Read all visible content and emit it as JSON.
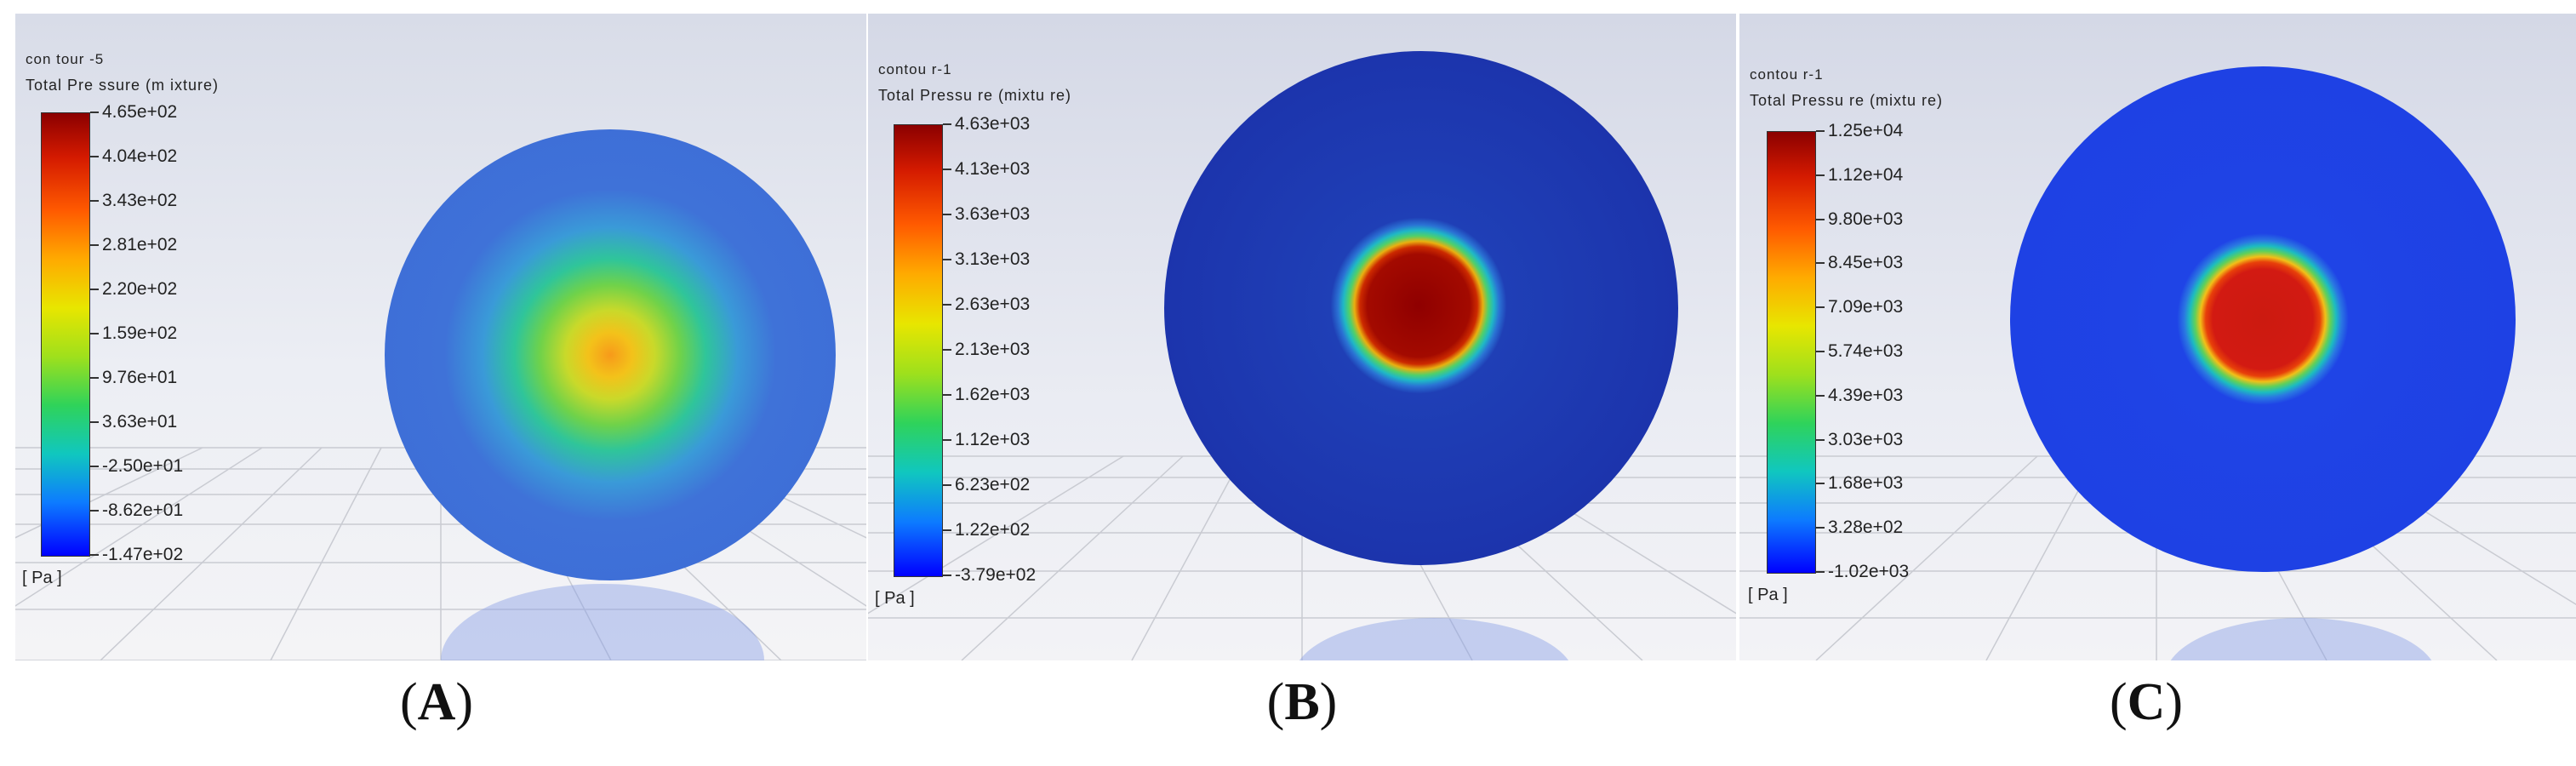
{
  "panels": [
    {
      "contour_name": "con tour -5",
      "variable": "Total Pre ssure  (m ixture)",
      "unit": "[ Pa ]",
      "ticks": [
        "4.65e+02",
        "4.04e+02",
        "3.43e+02",
        "2.81e+02",
        "2.20e+02",
        "1.59e+02",
        "9.76e+01",
        "3.63e+01",
        "-2.50e+01",
        "-8.62e+01",
        "-1.47e+02"
      ],
      "caption_open": "(",
      "caption_letter": "A",
      "caption_close": ")"
    },
    {
      "contour_name": "contou r-1",
      "variable": "Total Pressu re (mixtu re)",
      "unit": "[ Pa ]",
      "ticks": [
        "4.63e+03",
        "4.13e+03",
        "3.63e+03",
        "3.13e+03",
        "2.63e+03",
        "2.13e+03",
        "1.62e+03",
        "1.12e+03",
        "6.23e+02",
        "1.22e+02",
        "-3.79e+02"
      ],
      "caption_open": "(",
      "caption_letter": "B",
      "caption_close": ")"
    },
    {
      "contour_name": "contou r-1",
      "variable": "Total Pressu re (mixtu re)",
      "unit": "[ Pa ]",
      "ticks": [
        "1.25e+04",
        "1.12e+04",
        "9.80e+03",
        "8.45e+03",
        "7.09e+03",
        "5.74e+03",
        "4.39e+03",
        "3.03e+03",
        "1.68e+03",
        "3.28e+02",
        "-1.02e+03"
      ],
      "caption_open": "(",
      "caption_letter": "C",
      "caption_close": ")"
    }
  ]
}
